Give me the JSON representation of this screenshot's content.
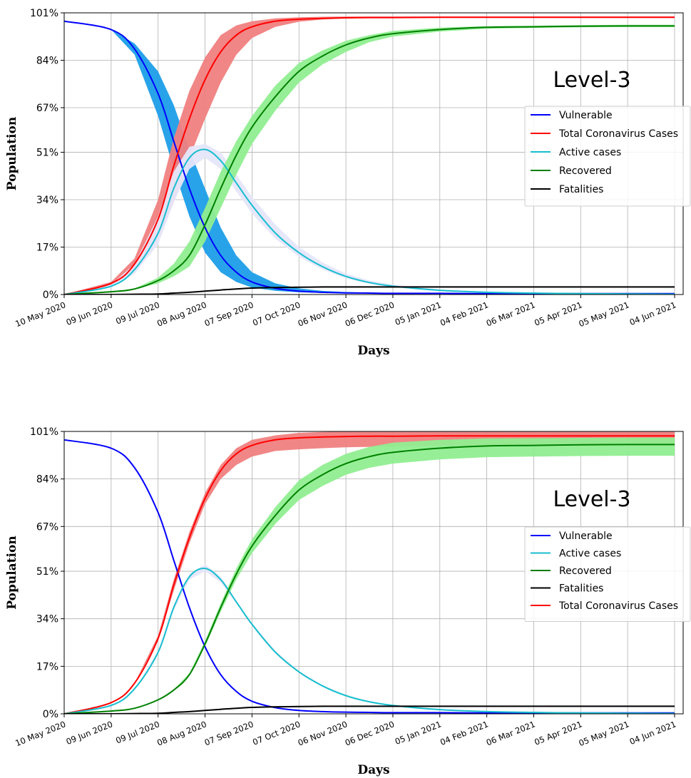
{
  "chart_data": [
    {
      "type": "line",
      "annotation": "Level-3",
      "xlabel": "Days",
      "ylabel": "Population",
      "ylim": [
        0,
        101
      ],
      "yticks": [
        "0%",
        "17%",
        "34%",
        "51%",
        "67%",
        "84%",
        "101%"
      ],
      "ytick_values": [
        0,
        17,
        34,
        51,
        67,
        84,
        101
      ],
      "xticks": [
        "10 May 2020",
        "09 Jun 2020",
        "09 Jul 2020",
        "08 Aug 2020",
        "07 Sep 2020",
        "07 Oct 2020",
        "06 Nov 2020",
        "06 Dec 2020",
        "05 Jan 2021",
        "04 Feb 2021",
        "06 Mar 2021",
        "05 Apr 2021",
        "05 May 2021",
        "04 Jun 2021"
      ],
      "x_day_of_tick": [
        0,
        30,
        60,
        90,
        120,
        150,
        180,
        210,
        240,
        270,
        300,
        330,
        360,
        390
      ],
      "x_days": [
        0,
        30,
        45,
        60,
        70,
        80,
        90,
        100,
        110,
        120,
        135,
        150,
        165,
        180,
        195,
        210,
        240,
        270,
        300,
        330,
        360,
        390
      ],
      "grid": true,
      "legend_position": "center-right",
      "legend_order": [
        "Vulnerable",
        "Total Coronavirus Cases",
        "Active cases",
        "Recovered",
        "Fatalities"
      ],
      "series": [
        {
          "name": "Vulnerable",
          "color": "#0000ff",
          "values": [
            98,
            95,
            88,
            72,
            55,
            38,
            24,
            14,
            8,
            4.5,
            2.2,
            1.2,
            0.8,
            0.6,
            0.5,
            0.4,
            0.4,
            0.3,
            0.3,
            0.3,
            0.3,
            0.3
          ],
          "band_color": "#1c9ee8",
          "band_low": [
            98,
            95,
            86,
            64,
            45,
            28,
            15,
            8,
            4.5,
            2.5,
            1.3,
            0.8,
            0.6,
            0.5,
            0.4,
            0.4,
            0.3,
            0.3,
            0.3,
            0.3,
            0.3,
            0.3
          ],
          "band_high": [
            98,
            95,
            90,
            80,
            68,
            52,
            38,
            24,
            14,
            8,
            4,
            2.2,
            1.3,
            0.9,
            0.7,
            0.6,
            0.5,
            0.4,
            0.4,
            0.3,
            0.3,
            0.3
          ]
        },
        {
          "name": "Total Coronavirus Cases",
          "color": "#ff0000",
          "values": [
            0,
            4,
            11,
            27,
            46,
            63,
            77,
            87,
            93,
            96,
            98,
            98.7,
            99,
            99.2,
            99.3,
            99.3,
            99.4,
            99.4,
            99.4,
            99.4,
            99.4,
            99.4
          ],
          "band_color": "#f08080",
          "band_low": [
            0,
            3.5,
            9,
            20,
            33,
            49,
            63,
            76,
            86,
            92,
            96,
            97.8,
            98.6,
            99,
            99.1,
            99.2,
            99.3,
            99.3,
            99.3,
            99.3,
            99.3,
            99.3
          ],
          "band_high": [
            0,
            4.5,
            13,
            34,
            56,
            73,
            85,
            93,
            96.5,
            98,
            99,
            99.4,
            99.6,
            99.7,
            99.7,
            99.7,
            99.7,
            99.7,
            99.7,
            99.7,
            99.7,
            99.7
          ]
        },
        {
          "name": "Active cases",
          "color": "#17becf",
          "values": [
            0,
            3,
            9,
            22,
            38,
            49,
            52,
            48,
            40,
            32,
            22,
            15,
            10,
            6.5,
            4.3,
            3,
            1.5,
            0.8,
            0.5,
            0.3,
            0.2,
            0.1
          ],
          "band_color": "#e6e6fa",
          "band_low": [
            0,
            2.5,
            7.5,
            18,
            33,
            45,
            49,
            45,
            37,
            29,
            20,
            13.5,
            9,
            5.8,
            3.8,
            2.6,
            1.2,
            0.6,
            0.3,
            0.2,
            0.1,
            0.1
          ],
          "band_high": [
            0,
            3.5,
            11,
            28,
            44,
            53,
            54,
            51,
            43,
            35,
            25,
            17,
            11.5,
            7.5,
            5,
            3.5,
            1.8,
            1,
            0.6,
            0.4,
            0.3,
            0.2
          ]
        },
        {
          "name": "Recovered",
          "color": "#008000",
          "values": [
            0,
            1,
            2,
            5,
            8.5,
            14,
            25,
            38,
            50,
            60,
            71,
            80,
            85.5,
            89.5,
            92,
            93.5,
            95,
            95.8,
            96,
            96.2,
            96.3,
            96.3
          ],
          "band_color": "#90ee90",
          "band_low": [
            0,
            1,
            2,
            4,
            6.5,
            10,
            19,
            31,
            43,
            54,
            66,
            76,
            82.5,
            87,
            90.5,
            92.5,
            94.3,
            95.3,
            95.6,
            95.8,
            95.9,
            95.9
          ],
          "band_high": [
            0,
            1,
            2.2,
            6,
            11,
            19,
            31,
            44,
            55,
            64,
            75,
            83,
            87.5,
            91,
            93,
            94.5,
            95.7,
            96.2,
            96.4,
            96.6,
            96.7,
            96.7
          ]
        },
        {
          "name": "Fatalities",
          "color": "#000000",
          "values": [
            0,
            0,
            0.1,
            0.2,
            0.5,
            0.8,
            1.2,
            1.6,
            2,
            2.3,
            2.5,
            2.6,
            2.7,
            2.7,
            2.7,
            2.7,
            2.7,
            2.7,
            2.7,
            2.7,
            2.7,
            2.7
          ],
          "band_color": "#555555",
          "band_low": [
            0,
            0,
            0.1,
            0.2,
            0.4,
            0.7,
            1.1,
            1.4,
            1.8,
            2.1,
            2.3,
            2.4,
            2.5,
            2.5,
            2.5,
            2.5,
            2.5,
            2.5,
            2.5,
            2.5,
            2.5,
            2.5
          ],
          "band_high": [
            0,
            0,
            0.1,
            0.3,
            0.6,
            0.9,
            1.4,
            1.8,
            2.2,
            2.5,
            2.7,
            2.8,
            2.9,
            2.9,
            2.9,
            2.9,
            2.9,
            2.9,
            2.9,
            2.9,
            2.9,
            2.9
          ]
        }
      ]
    },
    {
      "type": "line",
      "annotation": "Level-3",
      "xlabel": "Days",
      "ylabel": "Population",
      "ylim": [
        0,
        101
      ],
      "yticks": [
        "0%",
        "17%",
        "34%",
        "51%",
        "67%",
        "84%",
        "101%"
      ],
      "ytick_values": [
        0,
        17,
        34,
        51,
        67,
        84,
        101
      ],
      "xticks": [
        "10 May 2020",
        "09 Jun 2020",
        "09 Jul 2020",
        "08 Aug 2020",
        "07 Sep 2020",
        "07 Oct 2020",
        "06 Nov 2020",
        "06 Dec 2020",
        "05 Jan 2021",
        "04 Feb 2021",
        "06 Mar 2021",
        "05 Apr 2021",
        "05 May 2021",
        "04 Jun 2021"
      ],
      "x_day_of_tick": [
        0,
        30,
        60,
        90,
        120,
        150,
        180,
        210,
        240,
        270,
        300,
        330,
        360,
        390
      ],
      "x_days": [
        0,
        30,
        45,
        60,
        70,
        80,
        90,
        100,
        110,
        120,
        135,
        150,
        165,
        180,
        195,
        210,
        240,
        270,
        300,
        330,
        360,
        390
      ],
      "grid": true,
      "legend_position": "center-right",
      "legend_order": [
        "Vulnerable",
        "Active cases",
        "Recovered",
        "Fatalities",
        "Total Coronavirus Cases"
      ],
      "series": [
        {
          "name": "Vulnerable",
          "color": "#0000ff",
          "values": [
            98,
            95,
            88,
            72,
            55,
            38,
            24,
            14,
            8,
            4.5,
            2.2,
            1.2,
            0.8,
            0.6,
            0.5,
            0.4,
            0.4,
            0.3,
            0.3,
            0.3,
            0.3,
            0.3
          ]
        },
        {
          "name": "Total Coronavirus Cases",
          "color": "#ff0000",
          "values": [
            0,
            4,
            11,
            27,
            46,
            63,
            77,
            87,
            93,
            96,
            98,
            98.7,
            99,
            99.2,
            99.3,
            99.3,
            99.4,
            99.4,
            99.4,
            99.4,
            99.4,
            99.4
          ],
          "band_color": "#f08080",
          "band_low": [
            0,
            4,
            11,
            26,
            44,
            61,
            75,
            84,
            89,
            92,
            94,
            94.6,
            95,
            95.3,
            95.5,
            95.6,
            95.8,
            96,
            96,
            96,
            96,
            96
          ],
          "band_high": [
            0,
            4,
            11,
            28,
            48,
            65,
            79,
            89,
            95,
            98,
            99.6,
            100.5,
            100.8,
            101,
            101,
            101,
            101,
            101,
            101,
            101,
            101,
            101
          ]
        },
        {
          "name": "Active cases",
          "color": "#17becf",
          "values": [
            0,
            3,
            9,
            22,
            38,
            49,
            52,
            48,
            40,
            32,
            22,
            15,
            10,
            6.5,
            4.3,
            3,
            1.5,
            0.8,
            0.5,
            0.3,
            0.2,
            0.1
          ],
          "band_color": "#e6e6fa",
          "band_low": [
            0,
            3,
            9,
            21.5,
            37,
            48,
            51,
            47,
            39.5,
            31.5,
            21.5,
            14.7,
            9.8,
            6.3,
            4.2,
            2.9,
            1.4,
            0.7,
            0.4,
            0.3,
            0.2,
            0.1
          ],
          "band_high": [
            0,
            3,
            9,
            22.5,
            39,
            50,
            53.5,
            49,
            40.5,
            32.5,
            22.5,
            15.3,
            10.2,
            6.7,
            4.4,
            3.1,
            1.6,
            0.9,
            0.6,
            0.4,
            0.3,
            0.2
          ]
        },
        {
          "name": "Recovered",
          "color": "#008000",
          "values": [
            0,
            1,
            2,
            5,
            8.5,
            14,
            25,
            38,
            50,
            60,
            71,
            80,
            85.5,
            89.5,
            92,
            93.5,
            95,
            95.8,
            96,
            96.2,
            96.3,
            96.3
          ],
          "band_color": "#90ee90",
          "band_low": [
            0,
            1,
            2,
            5,
            8.3,
            13.5,
            24,
            36.5,
            48,
            57.5,
            68,
            76.5,
            81.5,
            85.5,
            88,
            89.5,
            91,
            91.8,
            92,
            92.2,
            92.3,
            92.3
          ],
          "band_high": [
            0,
            1,
            2,
            5,
            8.7,
            14.5,
            26,
            39.5,
            52,
            62.5,
            74,
            83.5,
            89,
            93,
            95.5,
            97,
            98,
            98.5,
            98.6,
            98.7,
            98.8,
            98.8
          ]
        },
        {
          "name": "Fatalities",
          "color": "#000000",
          "values": [
            0,
            0,
            0.1,
            0.2,
            0.5,
            0.8,
            1.2,
            1.6,
            2,
            2.3,
            2.5,
            2.6,
            2.7,
            2.7,
            2.7,
            2.7,
            2.7,
            2.7,
            2.7,
            2.7,
            2.7,
            2.7
          ],
          "band_color": "#555555",
          "band_low": [
            0,
            0,
            0.1,
            0.2,
            0.4,
            0.7,
            1.1,
            1.4,
            1.8,
            2.1,
            2.3,
            2.4,
            2.5,
            2.5,
            2.5,
            2.5,
            2.5,
            2.5,
            2.5,
            2.5,
            2.5,
            2.5
          ],
          "band_high": [
            0,
            0,
            0.1,
            0.3,
            0.6,
            0.9,
            1.4,
            1.8,
            2.2,
            2.5,
            2.7,
            2.8,
            2.9,
            2.9,
            2.9,
            2.9,
            2.9,
            2.9,
            2.9,
            2.9,
            2.9,
            2.9
          ]
        }
      ]
    }
  ]
}
